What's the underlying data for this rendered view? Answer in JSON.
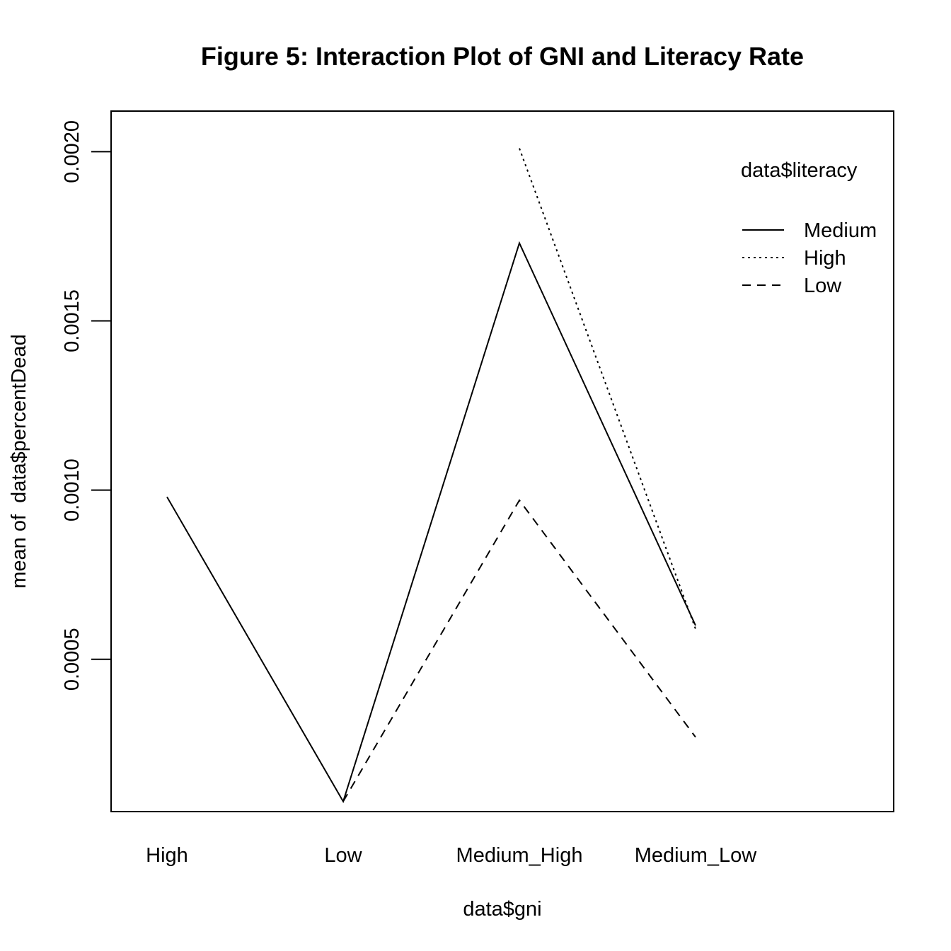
{
  "chart_data": {
    "type": "line",
    "title": "Figure 5: Interaction Plot of GNI and Literacy Rate",
    "xlabel": "data$gni",
    "ylabel": "mean of  data$percentDead",
    "categories": [
      "High",
      "Low",
      "Medium_High",
      "Medium_Low"
    ],
    "ylim": [
      5e-05,
      0.00212
    ],
    "yticks": [
      "0.0005",
      "0.0010",
      "0.0015",
      "0.0020"
    ],
    "grid": false,
    "legend": {
      "title": "data$literacy",
      "position": "top-right"
    },
    "series": [
      {
        "name": "Medium",
        "linestyle": "solid",
        "values": [
          0.00098,
          8e-05,
          0.00173,
          0.0006
        ]
      },
      {
        "name": "High",
        "linestyle": "dotted",
        "values": [
          null,
          null,
          0.00201,
          0.00059
        ]
      },
      {
        "name": "Low",
        "linestyle": "dashed",
        "values": [
          null,
          8e-05,
          0.00097,
          0.00027
        ]
      }
    ]
  }
}
